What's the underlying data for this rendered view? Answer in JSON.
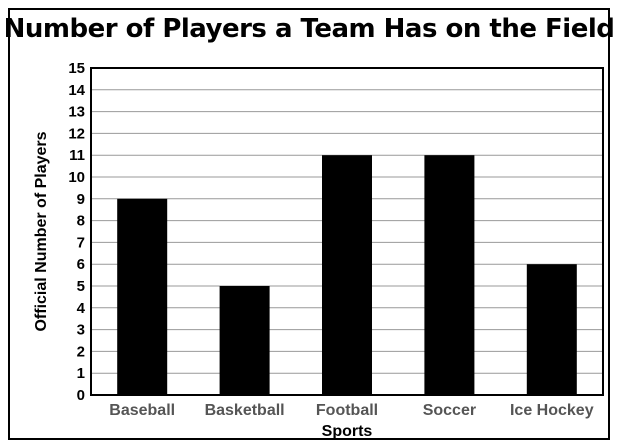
{
  "chart_data": {
    "type": "bar",
    "title": "Number of Players a Team Has on the Field",
    "xlabel": "Sports",
    "ylabel": "Official Number of Players",
    "categories": [
      "Baseball",
      "Basketball",
      "Football",
      "Soccer",
      "Ice Hockey"
    ],
    "values": [
      9,
      5,
      11,
      11,
      6
    ],
    "ylim": [
      0,
      15
    ],
    "yticks": [
      0,
      1,
      2,
      3,
      4,
      5,
      6,
      7,
      8,
      9,
      10,
      11,
      12,
      13,
      14,
      15
    ],
    "grid": true,
    "bar_color": "#000000",
    "grid_color": "#999999"
  }
}
